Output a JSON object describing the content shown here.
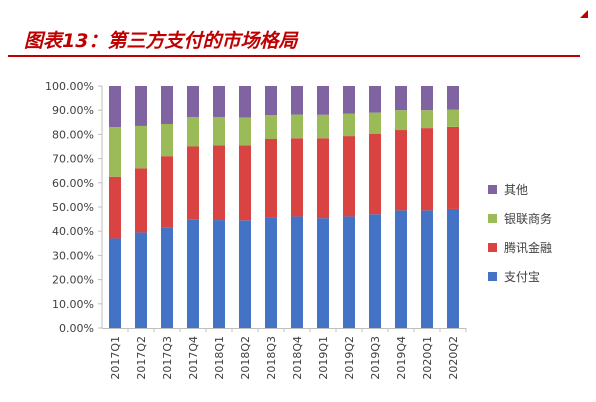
{
  "header": {
    "title": "图表13：第三方支付的市场格局"
  },
  "colors": {
    "title": "#c00000",
    "series": [
      "#4472c4",
      "#d94341",
      "#9bbb59",
      "#8064a2"
    ]
  },
  "chart_data": {
    "type": "bar",
    "stacked": true,
    "percent": true,
    "categories": [
      "2017Q1",
      "2017Q2",
      "2017Q3",
      "2017Q4",
      "2018Q1",
      "2018Q2",
      "2018Q3",
      "2018Q4",
      "2019Q1",
      "2019Q2",
      "2019Q3",
      "2019Q4",
      "2020Q1",
      "2020Q2"
    ],
    "series": [
      {
        "name": "支付宝",
        "values": [
          37.0,
          39.5,
          41.6,
          44.7,
          44.6,
          44.5,
          45.7,
          46.1,
          45.4,
          46.1,
          47.0,
          48.6,
          48.6,
          49.2
        ]
      },
      {
        "name": "腾讯金融",
        "values": [
          25.5,
          26.5,
          29.4,
          30.3,
          30.8,
          30.9,
          32.4,
          32.3,
          33.0,
          33.2,
          33.3,
          33.2,
          34.0,
          33.9
        ]
      },
      {
        "name": "银联商务",
        "values": [
          20.5,
          17.5,
          13.3,
          12.2,
          11.8,
          11.6,
          9.9,
          9.8,
          9.7,
          9.3,
          8.7,
          8.2,
          7.4,
          7.1
        ]
      },
      {
        "name": "其他",
        "values": [
          17.0,
          16.5,
          15.7,
          12.8,
          12.8,
          13.0,
          12.0,
          11.8,
          11.9,
          11.4,
          11.0,
          10.0,
          10.0,
          9.8
        ]
      }
    ],
    "ylim": [
      0,
      100
    ],
    "yticks": [
      "0.00%",
      "10.00%",
      "20.00%",
      "30.00%",
      "40.00%",
      "50.00%",
      "60.00%",
      "70.00%",
      "80.00%",
      "90.00%",
      "100.00%"
    ],
    "legend_order": [
      "其他",
      "银联商务",
      "腾讯金融",
      "支付宝"
    ],
    "legend_position": "right",
    "grid": false
  }
}
